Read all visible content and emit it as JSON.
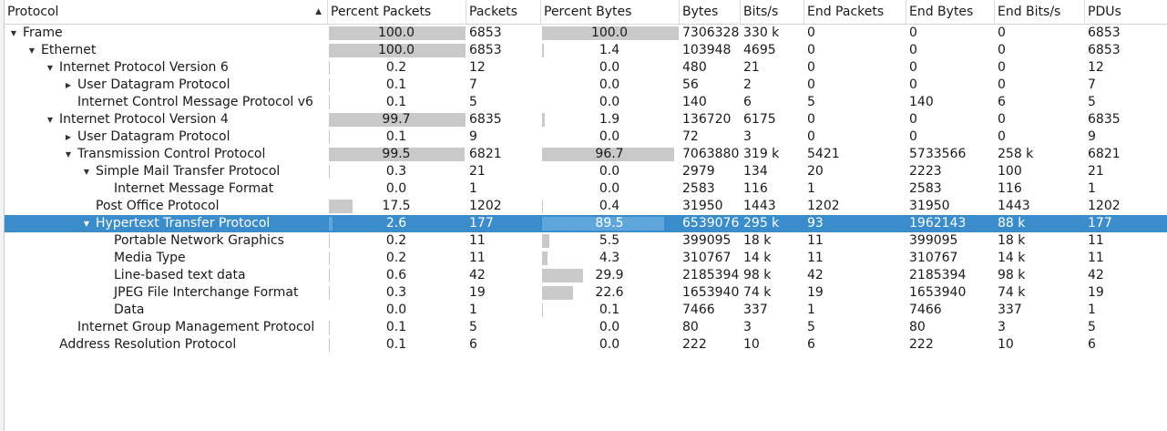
{
  "columns": {
    "protocol": "Protocol",
    "percent_packets": "Percent Packets",
    "packets": "Packets",
    "percent_bytes": "Percent Bytes",
    "bytes": "Bytes",
    "bits_s": "Bits/s",
    "end_packets": "End Packets",
    "end_bytes": "End Bytes",
    "end_bits_s": "End Bits/s",
    "pdus": "PDUs"
  },
  "sort_icon": "sort-ascending-icon",
  "colors": {
    "selection": "#3a8ccb",
    "bar": "#c9c9c9"
  },
  "rows": [
    {
      "name": "Frame",
      "depth": 0,
      "expander": "expanded",
      "pct_packets": "100.0",
      "pct_packets_val": 100.0,
      "packets": "6853",
      "pct_bytes": "100.0",
      "pct_bytes_val": 100.0,
      "bytes": "7306328",
      "bits": "330 k",
      "end_packets": "0",
      "end_bytes": "0",
      "end_bits": "0",
      "pdus": "6853"
    },
    {
      "name": "Ethernet",
      "depth": 1,
      "expander": "expanded",
      "pct_packets": "100.0",
      "pct_packets_val": 100.0,
      "packets": "6853",
      "pct_bytes": "1.4",
      "pct_bytes_val": 1.4,
      "bytes": "103948",
      "bits": "4695",
      "end_packets": "0",
      "end_bytes": "0",
      "end_bits": "0",
      "pdus": "6853"
    },
    {
      "name": "Internet Protocol Version 6",
      "depth": 2,
      "expander": "expanded",
      "pct_packets": "0.2",
      "pct_packets_val": 0.2,
      "packets": "12",
      "pct_bytes": "0.0",
      "pct_bytes_val": 0.0,
      "bytes": "480",
      "bits": "21",
      "end_packets": "0",
      "end_bytes": "0",
      "end_bits": "0",
      "pdus": "12"
    },
    {
      "name": "User Datagram Protocol",
      "depth": 3,
      "expander": "collapsed",
      "pct_packets": "0.1",
      "pct_packets_val": 0.1,
      "packets": "7",
      "pct_bytes": "0.0",
      "pct_bytes_val": 0.0,
      "bytes": "56",
      "bits": "2",
      "end_packets": "0",
      "end_bytes": "0",
      "end_bits": "0",
      "pdus": "7"
    },
    {
      "name": "Internet Control Message Protocol v6",
      "depth": 3,
      "expander": "none",
      "pct_packets": "0.1",
      "pct_packets_val": 0.1,
      "packets": "5",
      "pct_bytes": "0.0",
      "pct_bytes_val": 0.0,
      "bytes": "140",
      "bits": "6",
      "end_packets": "5",
      "end_bytes": "140",
      "end_bits": "6",
      "pdus": "5"
    },
    {
      "name": "Internet Protocol Version 4",
      "depth": 2,
      "expander": "expanded",
      "pct_packets": "99.7",
      "pct_packets_val": 99.7,
      "packets": "6835",
      "pct_bytes": "1.9",
      "pct_bytes_val": 1.9,
      "bytes": "136720",
      "bits": "6175",
      "end_packets": "0",
      "end_bytes": "0",
      "end_bits": "0",
      "pdus": "6835"
    },
    {
      "name": "User Datagram Protocol",
      "depth": 3,
      "expander": "collapsed",
      "pct_packets": "0.1",
      "pct_packets_val": 0.1,
      "packets": "9",
      "pct_bytes": "0.0",
      "pct_bytes_val": 0.0,
      "bytes": "72",
      "bits": "3",
      "end_packets": "0",
      "end_bytes": "0",
      "end_bits": "0",
      "pdus": "9"
    },
    {
      "name": "Transmission Control Protocol",
      "depth": 3,
      "expander": "expanded",
      "pct_packets": "99.5",
      "pct_packets_val": 99.5,
      "packets": "6821",
      "pct_bytes": "96.7",
      "pct_bytes_val": 96.7,
      "bytes": "7063880",
      "bits": "319 k",
      "end_packets": "5421",
      "end_bytes": "5733566",
      "end_bits": "258 k",
      "pdus": "6821"
    },
    {
      "name": "Simple Mail Transfer Protocol",
      "depth": 4,
      "expander": "expanded",
      "pct_packets": "0.3",
      "pct_packets_val": 0.3,
      "packets": "21",
      "pct_bytes": "0.0",
      "pct_bytes_val": 0.0,
      "bytes": "2979",
      "bits": "134",
      "end_packets": "20",
      "end_bytes": "2223",
      "end_bits": "100",
      "pdus": "21"
    },
    {
      "name": "Internet Message Format",
      "depth": 5,
      "expander": "none",
      "pct_packets": "0.0",
      "pct_packets_val": 0.0,
      "packets": "1",
      "pct_bytes": "0.0",
      "pct_bytes_val": 0.0,
      "bytes": "2583",
      "bits": "116",
      "end_packets": "1",
      "end_bytes": "2583",
      "end_bits": "116",
      "pdus": "1"
    },
    {
      "name": "Post Office Protocol",
      "depth": 4,
      "expander": "none",
      "pct_packets": "17.5",
      "pct_packets_val": 17.5,
      "packets": "1202",
      "pct_bytes": "0.4",
      "pct_bytes_val": 0.4,
      "bytes": "31950",
      "bits": "1443",
      "end_packets": "1202",
      "end_bytes": "31950",
      "end_bits": "1443",
      "pdus": "1202"
    },
    {
      "name": "Hypertext Transfer Protocol",
      "depth": 4,
      "expander": "expanded",
      "selected": true,
      "pct_packets": "2.6",
      "pct_packets_val": 2.6,
      "packets": "177",
      "pct_bytes": "89.5",
      "pct_bytes_val": 89.5,
      "bytes": "6539076",
      "bits": "295 k",
      "end_packets": "93",
      "end_bytes": "1962143",
      "end_bits": "88 k",
      "pdus": "177"
    },
    {
      "name": "Portable Network Graphics",
      "depth": 5,
      "expander": "none",
      "pct_packets": "0.2",
      "pct_packets_val": 0.2,
      "packets": "11",
      "pct_bytes": "5.5",
      "pct_bytes_val": 5.5,
      "bytes": "399095",
      "bits": "18 k",
      "end_packets": "11",
      "end_bytes": "399095",
      "end_bits": "18 k",
      "pdus": "11"
    },
    {
      "name": "Media Type",
      "depth": 5,
      "expander": "none",
      "pct_packets": "0.2",
      "pct_packets_val": 0.2,
      "packets": "11",
      "pct_bytes": "4.3",
      "pct_bytes_val": 4.3,
      "bytes": "310767",
      "bits": "14 k",
      "end_packets": "11",
      "end_bytes": "310767",
      "end_bits": "14 k",
      "pdus": "11"
    },
    {
      "name": "Line-based text data",
      "depth": 5,
      "expander": "none",
      "pct_packets": "0.6",
      "pct_packets_val": 0.6,
      "packets": "42",
      "pct_bytes": "29.9",
      "pct_bytes_val": 29.9,
      "bytes": "2185394",
      "bits": "98 k",
      "end_packets": "42",
      "end_bytes": "2185394",
      "end_bits": "98 k",
      "pdus": "42"
    },
    {
      "name": "JPEG File Interchange Format",
      "depth": 5,
      "expander": "none",
      "pct_packets": "0.3",
      "pct_packets_val": 0.3,
      "packets": "19",
      "pct_bytes": "22.6",
      "pct_bytes_val": 22.6,
      "bytes": "1653940",
      "bits": "74 k",
      "end_packets": "19",
      "end_bytes": "1653940",
      "end_bits": "74 k",
      "pdus": "19"
    },
    {
      "name": "Data",
      "depth": 5,
      "expander": "none",
      "pct_packets": "0.0",
      "pct_packets_val": 0.0,
      "packets": "1",
      "pct_bytes": "0.1",
      "pct_bytes_val": 0.1,
      "bytes": "7466",
      "bits": "337",
      "end_packets": "1",
      "end_bytes": "7466",
      "end_bits": "337",
      "pdus": "1"
    },
    {
      "name": "Internet Group Management Protocol",
      "depth": 3,
      "expander": "none",
      "pct_packets": "0.1",
      "pct_packets_val": 0.1,
      "packets": "5",
      "pct_bytes": "0.0",
      "pct_bytes_val": 0.0,
      "bytes": "80",
      "bits": "3",
      "end_packets": "5",
      "end_bytes": "80",
      "end_bits": "3",
      "pdus": "5"
    },
    {
      "name": "Address Resolution Protocol",
      "depth": 2,
      "expander": "none",
      "pct_packets": "0.1",
      "pct_packets_val": 0.1,
      "packets": "6",
      "pct_bytes": "0.0",
      "pct_bytes_val": 0.0,
      "bytes": "222",
      "bits": "10",
      "end_packets": "6",
      "end_bytes": "222",
      "end_bits": "10",
      "pdus": "6"
    }
  ]
}
